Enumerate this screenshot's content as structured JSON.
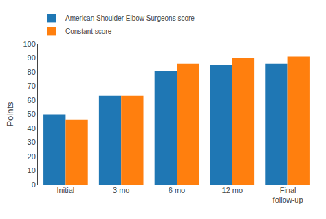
{
  "chart_data": {
    "type": "bar",
    "categories": [
      "Initial",
      "3 mo",
      "6 mo",
      "12 mo",
      "Final\nfollow-up"
    ],
    "series": [
      {
        "name": "American Shoulder Elbow Surgeons score",
        "values": [
          50,
          63,
          81,
          85,
          86
        ]
      },
      {
        "name": "Constant score",
        "values": [
          46,
          63,
          86,
          90,
          91
        ]
      }
    ],
    "ylabel": "Points",
    "ylim": [
      0,
      100
    ],
    "yticks": [
      0,
      10,
      20,
      30,
      40,
      50,
      60,
      70,
      80,
      90,
      100
    ],
    "grid": false,
    "legend": "upper left"
  }
}
